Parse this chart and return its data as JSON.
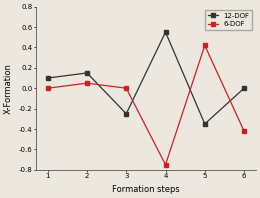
{
  "x": [
    1,
    2,
    3,
    4,
    5,
    6
  ],
  "y_12dof": [
    0.1,
    0.15,
    -0.25,
    0.55,
    -0.35,
    0.0
  ],
  "y_6dof": [
    0.0,
    0.05,
    0.0,
    -0.75,
    0.42,
    -0.42
  ],
  "line_12dof_color": "#333333",
  "line_6dof_color": "#cc2222",
  "xlabel": "Formation steps",
  "ylabel": "X-Formation",
  "ylim": [
    -0.8,
    0.8
  ],
  "xlim": [
    0.7,
    6.3
  ],
  "yticks": [
    -0.8,
    -0.6,
    -0.4,
    -0.2,
    0.0,
    0.2,
    0.4,
    0.6,
    0.8
  ],
  "ytick_labels": [
    "-0.8",
    "-0.6",
    "-0.4",
    "-0.2",
    "0.0",
    "0.2",
    "0.4",
    "0.6",
    "0.8"
  ],
  "xticks": [
    1,
    2,
    3,
    4,
    5,
    6
  ],
  "legend_12dof": "12-DOF",
  "legend_6dof": "6-DOF",
  "background_color": "#ede8df"
}
